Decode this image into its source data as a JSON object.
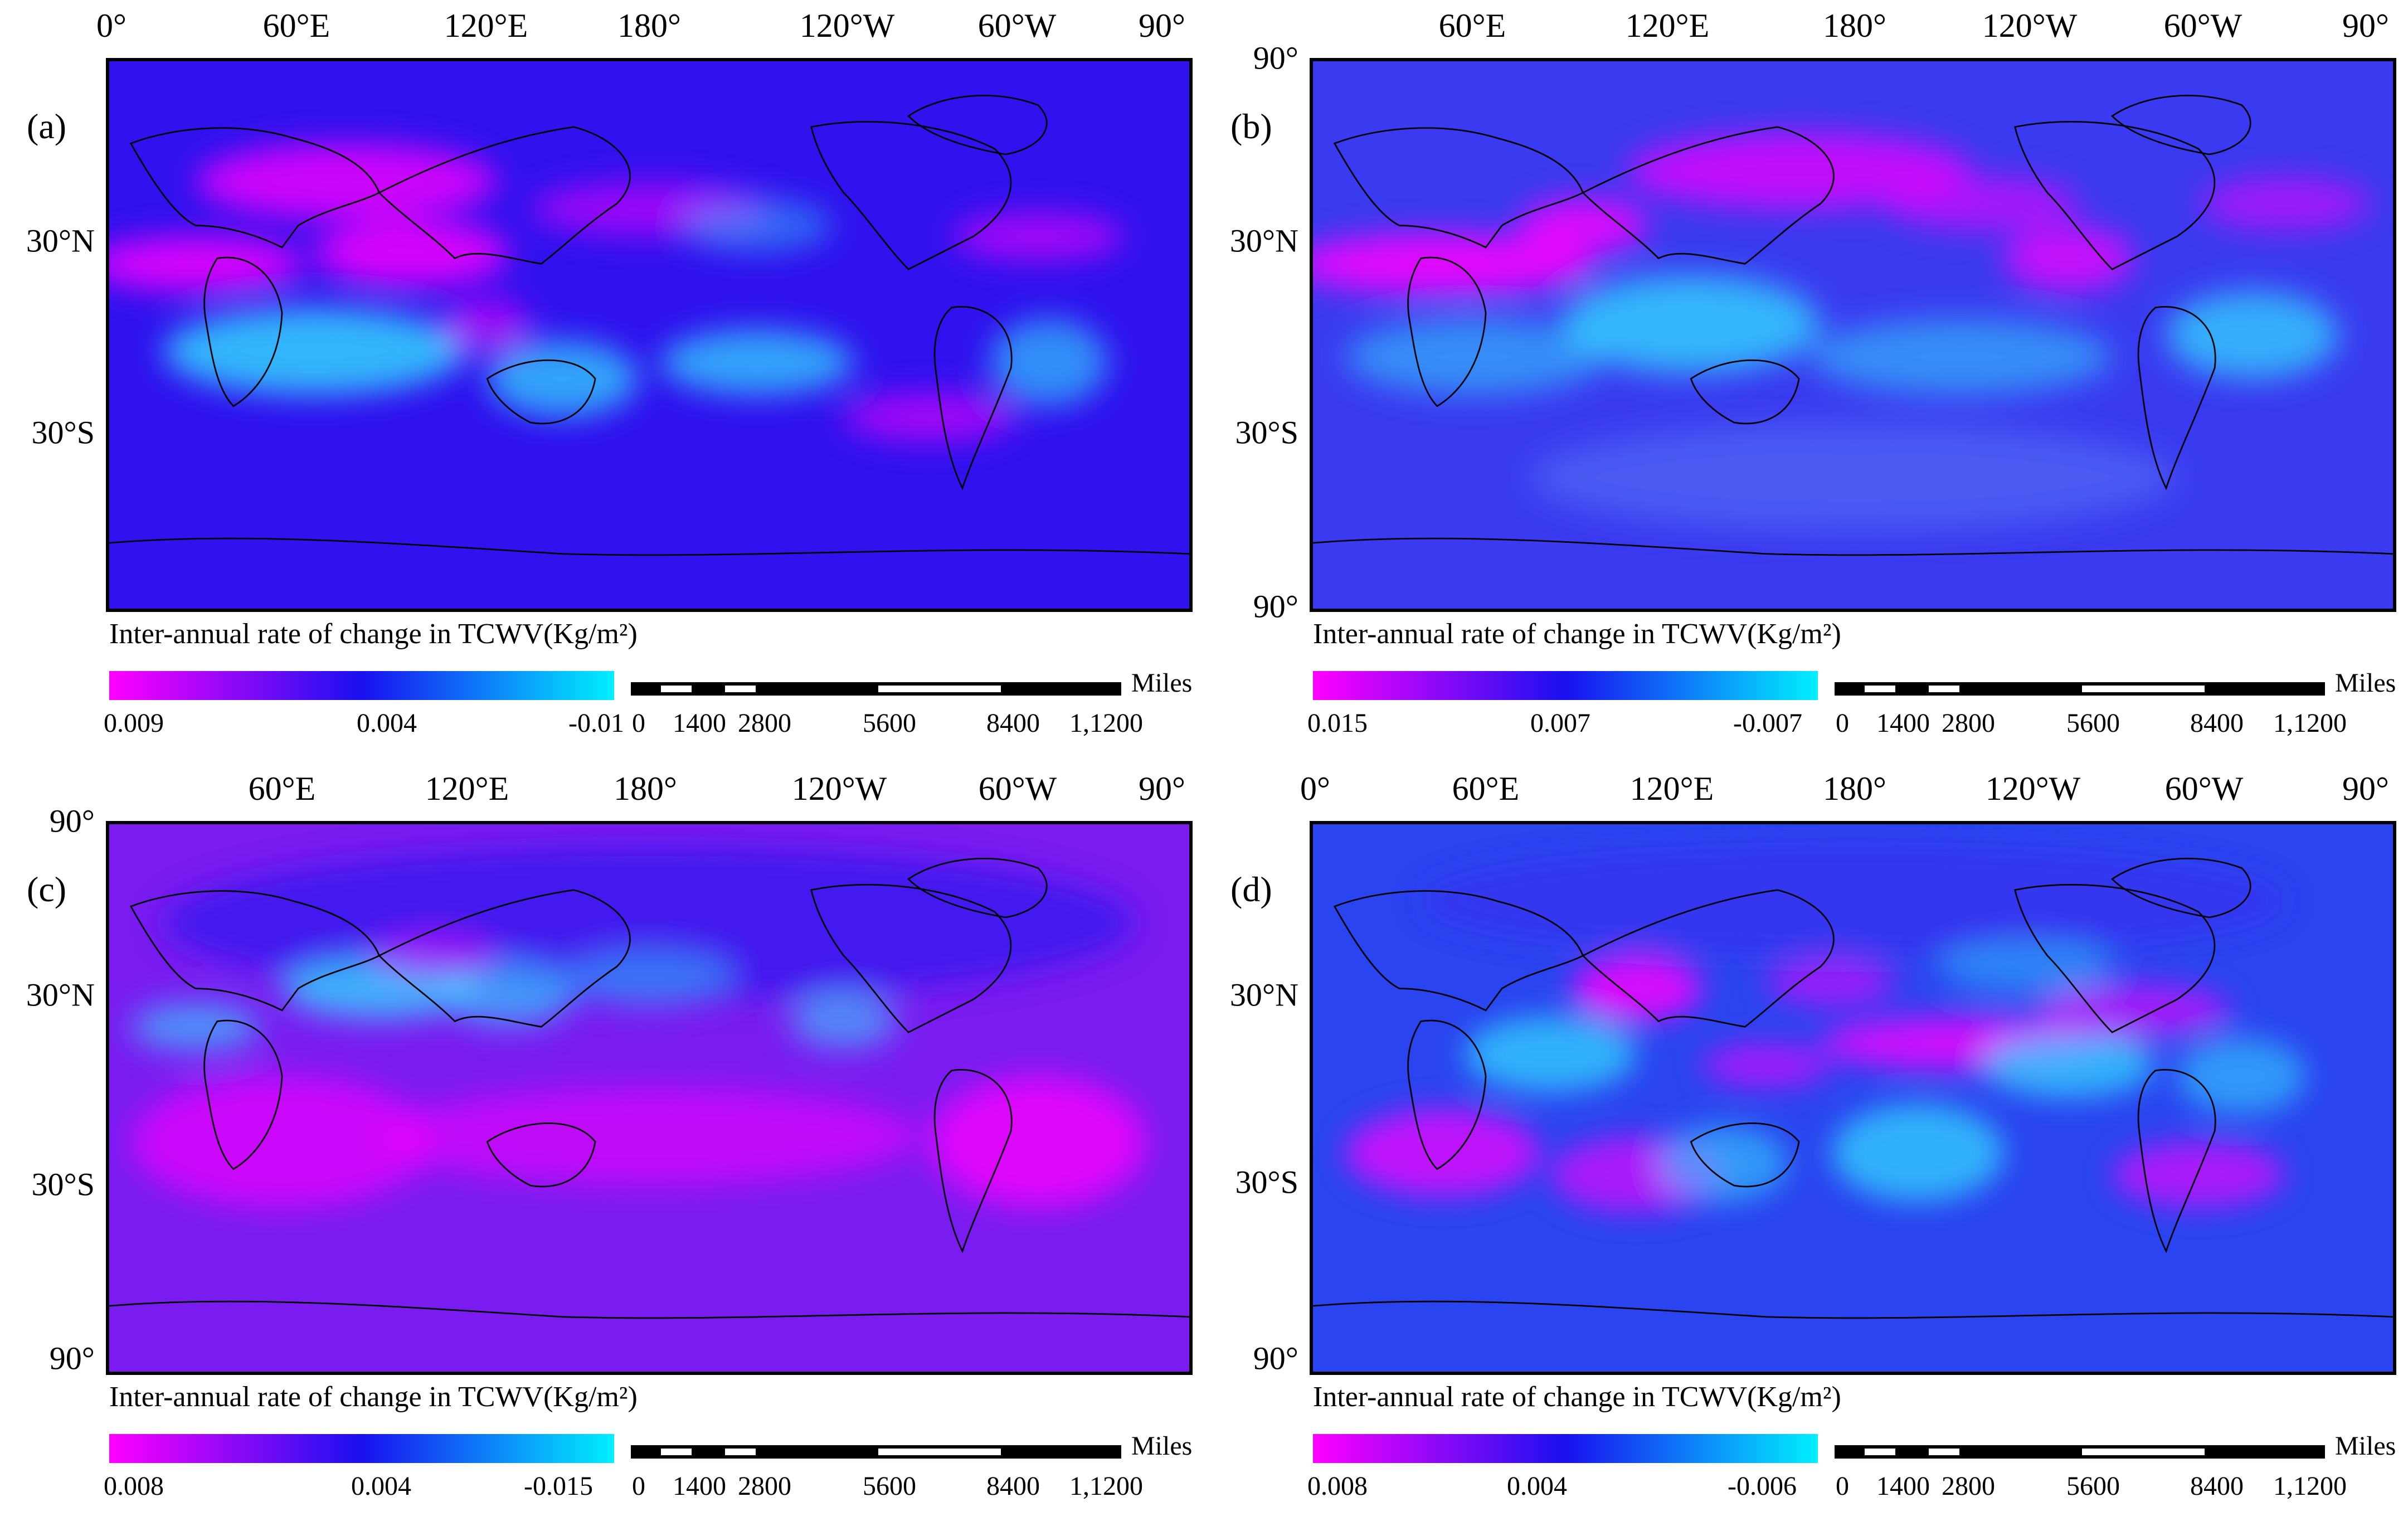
{
  "panels": [
    {
      "letter": "(a)",
      "lon_labels": [
        "0°",
        "60°E",
        "120°E",
        "180°",
        "120°W",
        "60°W",
        "90°"
      ],
      "lat_labels": [
        "30°N",
        "30°S"
      ],
      "colorbar": {
        "title": "Inter-annual rate of change in TCWV(Kg/m²)",
        "ticks": [
          "0.009",
          "0.004",
          "-0.01"
        ]
      }
    },
    {
      "letter": "(b)",
      "lon_labels": [
        "60°E",
        "120°E",
        "180°",
        "120°W",
        "60°W",
        "90°"
      ],
      "lat_labels": [
        "90°",
        "30°N",
        "30°S",
        "90°"
      ],
      "colorbar": {
        "title": "Inter-annual rate of change in TCWV(Kg/m²)",
        "ticks": [
          "0.015",
          "0.007",
          "-0.007"
        ]
      }
    },
    {
      "letter": "(c)",
      "lon_labels": [
        "60°E",
        "120°E",
        "180°",
        "120°W",
        "60°W",
        "90°"
      ],
      "lat_labels": [
        "90°",
        "30°N",
        "30°S",
        "90°"
      ],
      "colorbar": {
        "title": "Inter-annual rate of change in TCWV(Kg/m²)",
        "ticks": [
          "0.008",
          "0.004",
          "-0.015"
        ]
      }
    },
    {
      "letter": "(d)",
      "lon_labels": [
        "0°",
        "60°E",
        "120°E",
        "180°",
        "120°W",
        "60°W",
        "90°"
      ],
      "lat_labels": [
        "30°N",
        "30°S",
        "90°"
      ],
      "colorbar": {
        "title": "Inter-annual rate of change in TCWV(Kg/m²)",
        "ticks": [
          "0.008",
          "0.004",
          "-0.006"
        ]
      }
    }
  ],
  "scalebar": {
    "unit": "Miles",
    "ticks": [
      "0",
      "1400",
      "2800",
      "5600",
      "8400",
      "1,1200"
    ]
  },
  "colors": {
    "magenta": "#ff00ff",
    "blue": "#2a10f0",
    "cyan": "#00f0ff",
    "coast": "#000000"
  }
}
